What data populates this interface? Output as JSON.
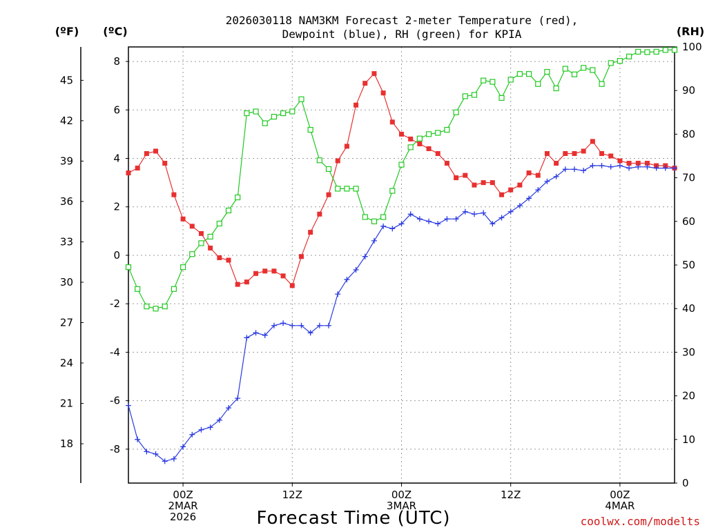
{
  "chart_data": {
    "type": "line",
    "title_line1": "2026030118 NAM3KM Forecast 2-meter Temperature (red),",
    "title_line2": "Dewpoint (blue), RH (green) for KPIA",
    "xlabel": "Forecast Time (UTC)",
    "credit": "coolwx.com/modelts",
    "units": {
      "fahrenheit": "(ºF)",
      "celsius": "(ºC)",
      "rh": "(RH)"
    },
    "x_unit": "forecast hour from 2026030118",
    "xlim": [
      0,
      60
    ],
    "x_ticks": [
      {
        "x": 6,
        "lines": [
          "00Z",
          "2MAR",
          "2026"
        ]
      },
      {
        "x": 18,
        "lines": [
          "12Z"
        ]
      },
      {
        "x": 30,
        "lines": [
          "00Z",
          "3MAR"
        ]
      },
      {
        "x": 42,
        "lines": [
          "12Z"
        ]
      },
      {
        "x": 54,
        "lines": [
          "00Z",
          "4MAR"
        ]
      }
    ],
    "celsius_axis": {
      "ylim": [
        -9.4,
        8.6
      ],
      "ticks": [
        -8,
        -6,
        -4,
        -2,
        0,
        2,
        4,
        6,
        8
      ]
    },
    "fahrenheit_axis": {
      "ticks": [
        18,
        21,
        24,
        27,
        30,
        33,
        36,
        39,
        42,
        45
      ]
    },
    "rh_axis": {
      "ylim": [
        0,
        100
      ],
      "ticks": [
        0,
        10,
        20,
        30,
        40,
        50,
        60,
        70,
        80,
        90,
        100
      ]
    },
    "x": [
      0,
      1,
      2,
      3,
      4,
      5,
      6,
      7,
      8,
      9,
      10,
      11,
      12,
      13,
      14,
      15,
      16,
      17,
      18,
      19,
      20,
      21,
      22,
      23,
      24,
      25,
      26,
      27,
      28,
      29,
      30,
      31,
      32,
      33,
      34,
      35,
      36,
      37,
      38,
      39,
      40,
      41,
      42,
      43,
      44,
      45,
      46,
      47,
      48,
      49,
      50,
      51,
      52,
      53,
      54,
      55,
      56,
      57,
      58,
      59,
      60
    ],
    "series": [
      {
        "name": "Temperature",
        "unit": "C",
        "color": "#e83030",
        "marker": "filled-square",
        "values": [
          3.4,
          3.6,
          4.2,
          4.3,
          3.8,
          2.5,
          1.5,
          1.2,
          0.9,
          0.3,
          -0.1,
          -0.2,
          -1.2,
          -1.1,
          -0.75,
          -0.65,
          -0.65,
          -0.85,
          -1.25,
          -0.05,
          0.95,
          1.7,
          2.5,
          3.9,
          4.5,
          6.2,
          7.1,
          7.5,
          6.7,
          5.5,
          5.0,
          4.8,
          4.6,
          4.4,
          4.2,
          3.8,
          3.2,
          3.3,
          2.9,
          3.0,
          3.0,
          2.5,
          2.7,
          2.9,
          3.4,
          3.3,
          4.2,
          3.8,
          4.2,
          4.2,
          4.3,
          4.7,
          4.2,
          4.1,
          3.9,
          3.8,
          3.8,
          3.8,
          3.7,
          3.7,
          3.6
        ]
      },
      {
        "name": "Dewpoint",
        "unit": "C",
        "color": "#2838e0",
        "marker": "plus",
        "values": [
          -6.2,
          -7.6,
          -8.1,
          -8.2,
          -8.5,
          -8.4,
          -7.9,
          -7.4,
          -7.2,
          -7.1,
          -6.8,
          -6.3,
          -5.9,
          -3.4,
          -3.2,
          -3.3,
          -2.9,
          -2.8,
          -2.9,
          -2.9,
          -3.2,
          -2.9,
          -2.9,
          -1.6,
          -1.0,
          -0.6,
          -0.05,
          0.6,
          1.2,
          1.1,
          1.3,
          1.7,
          1.5,
          1.4,
          1.3,
          1.5,
          1.5,
          1.8,
          1.7,
          1.75,
          1.3,
          1.55,
          1.8,
          2.05,
          2.35,
          2.7,
          3.05,
          3.25,
          3.55,
          3.55,
          3.5,
          3.7,
          3.7,
          3.65,
          3.7,
          3.6,
          3.65,
          3.65,
          3.6,
          3.6,
          3.6
        ]
      },
      {
        "name": "RH",
        "unit": "%",
        "color": "#20c820",
        "marker": "open-square",
        "values": [
          49.5,
          44.5,
          40.5,
          40,
          40.5,
          44.5,
          49.5,
          52.5,
          55,
          56.5,
          59.5,
          62.5,
          65.5,
          84.8,
          85.2,
          82.5,
          84,
          84.8,
          85.2,
          88,
          81,
          74,
          72,
          67.5,
          67.5,
          67.5,
          61,
          60,
          61,
          67,
          73,
          77,
          79,
          80,
          80.3,
          81,
          85,
          88.7,
          89,
          92.3,
          92,
          88.3,
          92.5,
          93.8,
          93.8,
          91.5,
          94.3,
          90.5,
          95,
          93.7,
          95.2,
          94.7,
          91.5,
          96.3,
          96.8,
          97.8,
          98.9,
          98.8,
          98.9,
          99.3,
          99.3
        ]
      }
    ]
  }
}
